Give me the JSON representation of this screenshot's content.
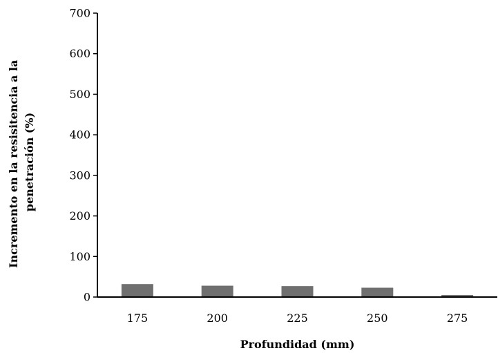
{
  "chart_data": {
    "type": "bar",
    "categories": [
      "175",
      "200",
      "225",
      "250",
      "275"
    ],
    "values": [
      32,
      28,
      27,
      23,
      5
    ],
    "xlabel": "Profundidad (mm)",
    "ylabel_lines": [
      "Incremento en la resisitencia a la",
      "penetración (%)"
    ],
    "ylim": [
      0,
      700
    ],
    "yticks": [
      0,
      100,
      200,
      300,
      400,
      500,
      600,
      700
    ],
    "grid": false,
    "legend": "none",
    "colors": {
      "bar": "#6f6f6f",
      "axis": "#000000"
    }
  }
}
